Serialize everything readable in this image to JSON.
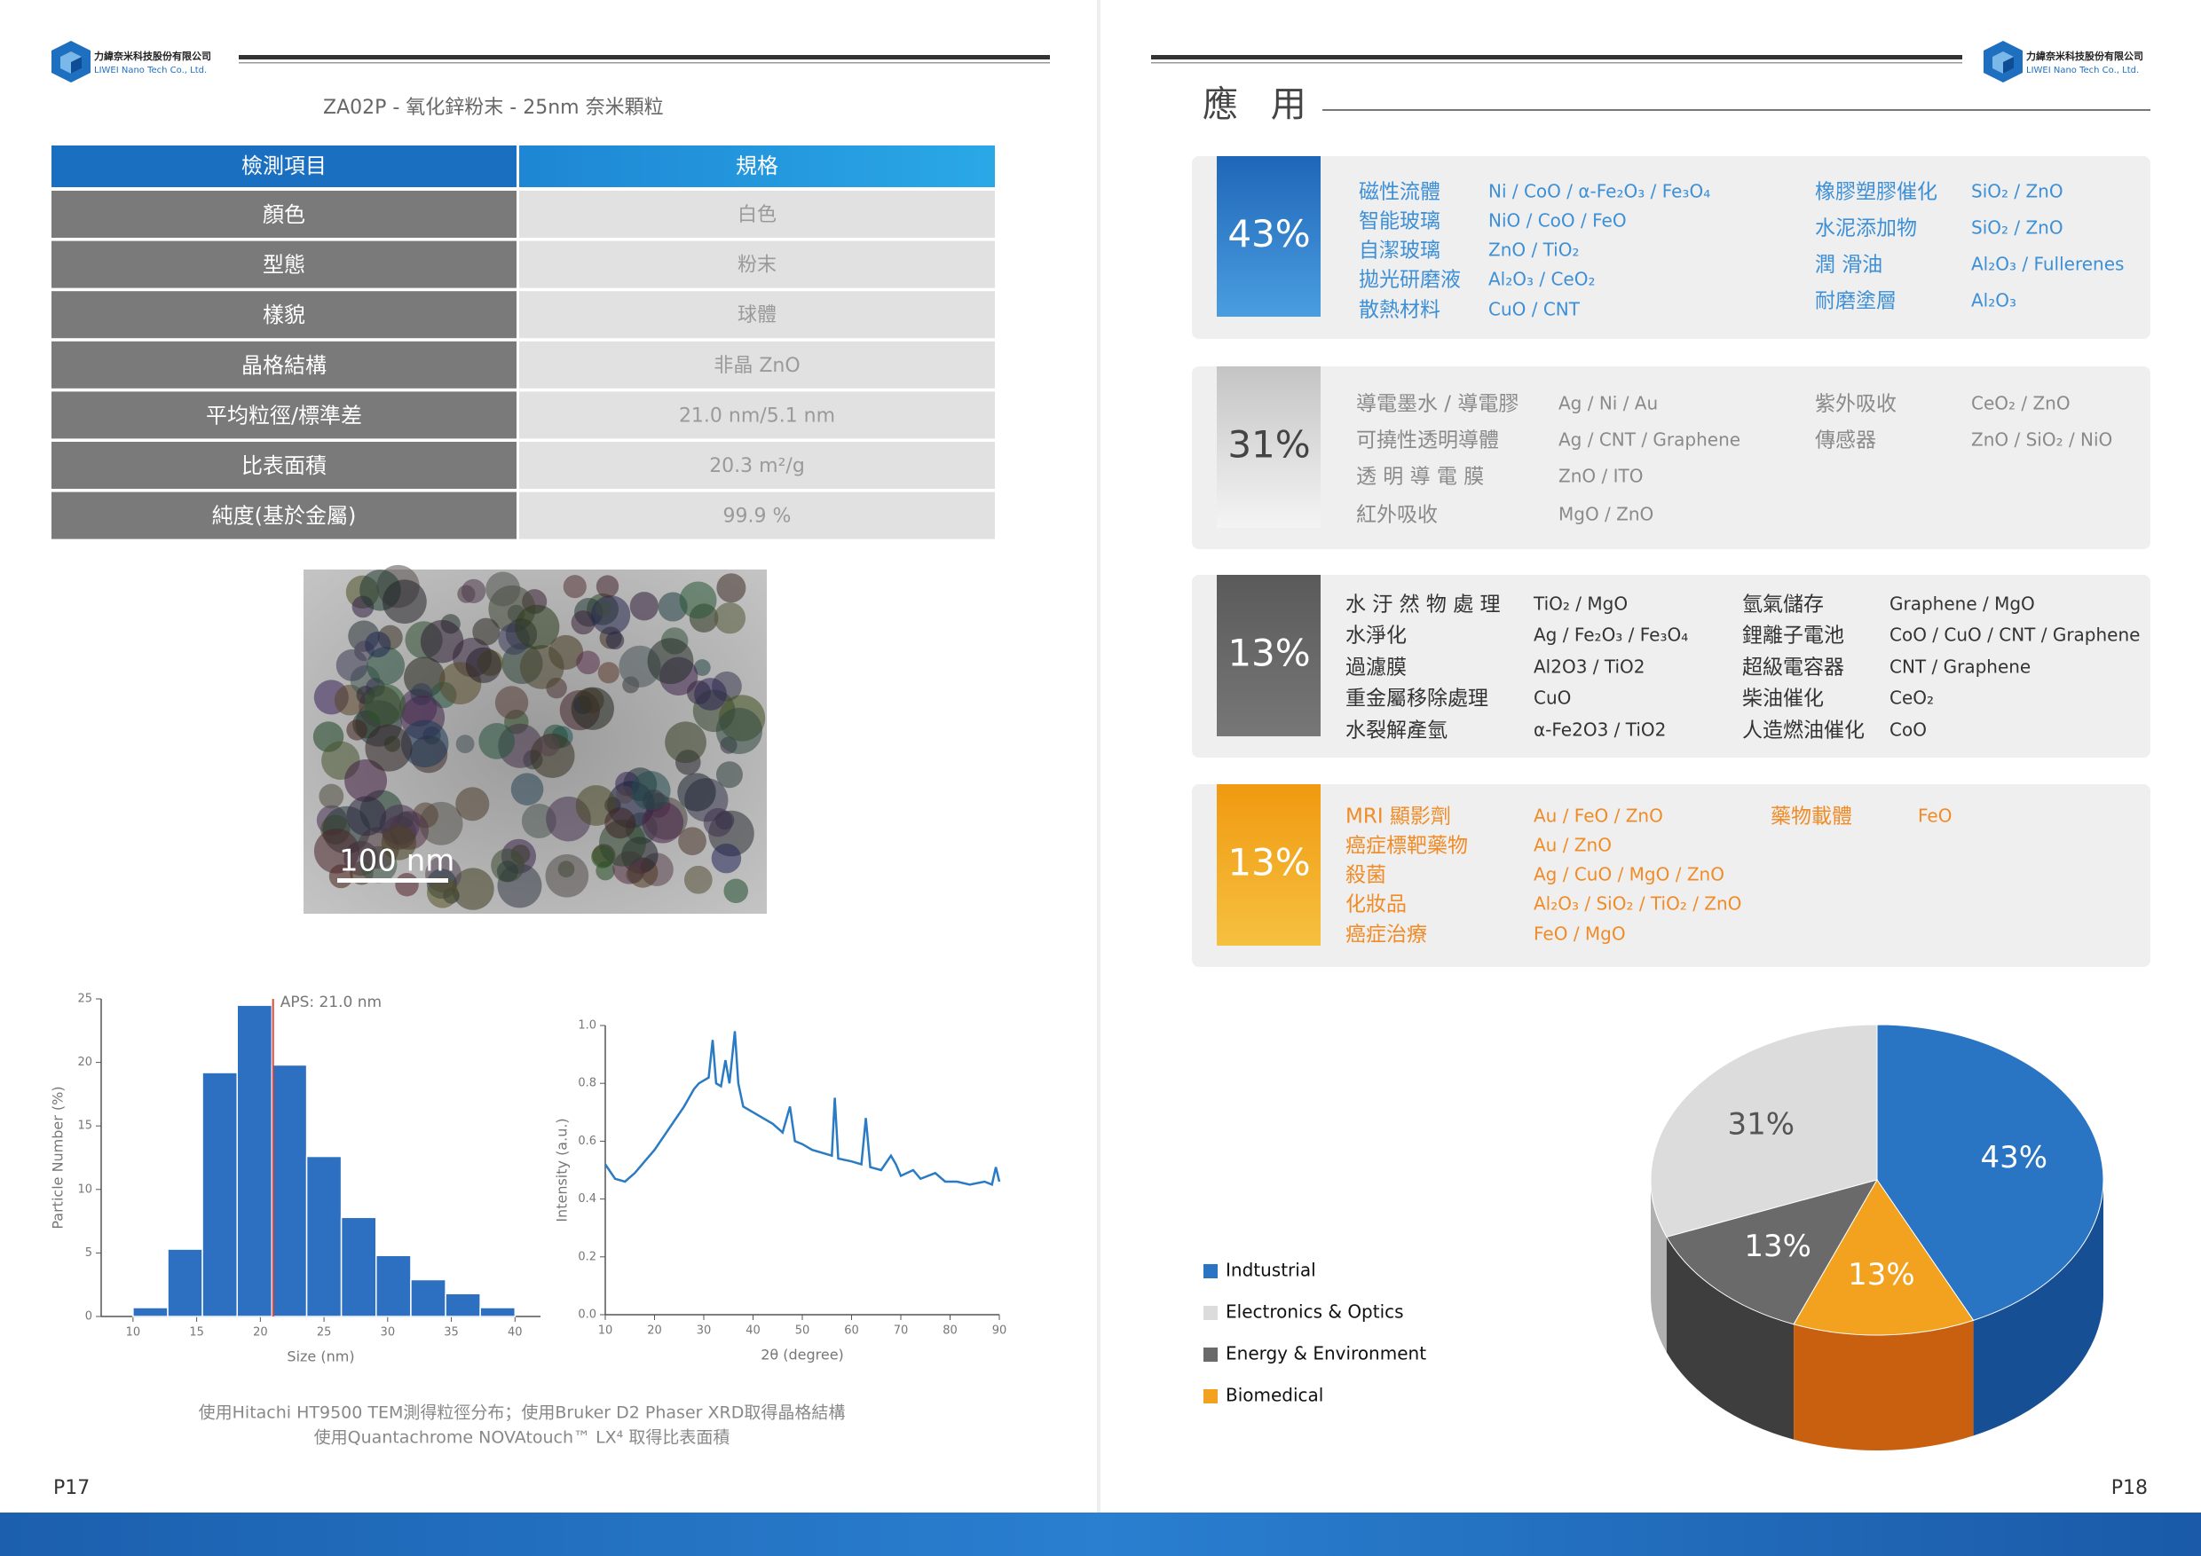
{
  "header": {
    "company_zh": "力緯奈米科技股份有限公司",
    "company_en": "LIWEI Nano Tech Co., Ltd."
  },
  "product_title": "ZA02P - 氧化鋅粉末  - 25nm  奈米顆粒",
  "table": {
    "header": [
      "檢測項目",
      "規格"
    ],
    "rows": [
      [
        "顏色",
        "白色"
      ],
      [
        "型態",
        "粉末"
      ],
      [
        "樣貌",
        "球體"
      ],
      [
        "晶格結構",
        "非晶  ZnO"
      ],
      [
        "平均粒徑/標準差",
        "21.0 nm/5.1 nm"
      ],
      [
        "比表面積",
        "20.3 m²/g"
      ],
      [
        "純度(基於金屬)",
        "99.9  %"
      ]
    ]
  },
  "tem_image": {
    "scale_label": "100 nm"
  },
  "chart_data": [
    {
      "type": "histogram",
      "xlabel": "Size (nm)",
      "ylabel": "Particle Number (%)",
      "bins": [
        10,
        12.73,
        15.45,
        18.18,
        20.91,
        23.64,
        26.36,
        29.09,
        31.82,
        34.55,
        37.27,
        40
      ],
      "values": [
        0.7,
        5.3,
        19.2,
        24.5,
        19.8,
        12.6,
        7.8,
        4.8,
        2.9,
        1.8,
        0.7
      ],
      "color": "#2d6fc1",
      "xlim": [
        7.5,
        42
      ],
      "ylim": [
        0,
        25
      ],
      "xticks": [
        10,
        15,
        20,
        25,
        30,
        35,
        40
      ],
      "yticks": [
        0,
        5,
        10,
        15,
        20,
        25
      ],
      "vline": {
        "value": 21,
        "label": "APS: 21.0 nm",
        "color": "#e0473a"
      }
    },
    {
      "type": "line",
      "xlabel": "2θ (degree)",
      "ylabel": "Intensity (a.u.)",
      "x": [
        10,
        12,
        14,
        16,
        18,
        20,
        22,
        24,
        26,
        28,
        29,
        30,
        31,
        31.8,
        32.5,
        33.5,
        34.4,
        35.2,
        36.3,
        37,
        38,
        40,
        42,
        44,
        46,
        47.5,
        48.5,
        50,
        52,
        54,
        56,
        56.6,
        57.3,
        60,
        62,
        62.9,
        63.8,
        66,
        68,
        69,
        70,
        72.5,
        74,
        77,
        79,
        81.4,
        84,
        87,
        88.5,
        89.3,
        90
      ],
      "series": [
        {
          "color": "#2a7bc4",
          "values": [
            0.52,
            0.47,
            0.46,
            0.49,
            0.53,
            0.57,
            0.62,
            0.67,
            0.72,
            0.78,
            0.8,
            0.81,
            0.82,
            0.95,
            0.8,
            0.79,
            0.88,
            0.8,
            0.98,
            0.8,
            0.72,
            0.7,
            0.68,
            0.66,
            0.63,
            0.72,
            0.6,
            0.59,
            0.57,
            0.56,
            0.55,
            0.75,
            0.54,
            0.53,
            0.52,
            0.68,
            0.51,
            0.5,
            0.55,
            0.52,
            0.48,
            0.5,
            0.47,
            0.49,
            0.46,
            0.46,
            0.45,
            0.46,
            0.45,
            0.51,
            0.46
          ]
        }
      ],
      "xlim": [
        10,
        90
      ],
      "ylim": [
        0,
        1
      ],
      "xticks": [
        10,
        20,
        30,
        40,
        50,
        60,
        70,
        80,
        90
      ],
      "yticks": [
        {
          "value": 0,
          "label": "0.0"
        },
        0.2,
        0.4,
        0.6,
        0.8,
        {
          "value": 1,
          "label": "1.0"
        }
      ]
    },
    {
      "type": "pie",
      "categories": [
        "Indtustrial",
        "Electronics & Optics",
        "Energy & Environment",
        "Biomedical"
      ],
      "values": [
        43,
        31,
        13,
        13
      ],
      "value_labels": [
        "43%",
        "31%",
        "13%",
        "13%"
      ],
      "colors": [
        "#2a74c4",
        "#dcdcdc",
        "#6a6a6a",
        "#f2a21e"
      ],
      "legend": "left"
    }
  ],
  "caption": [
    "使用Hitachi HT9500 TEM測得粒徑分布；使用Bruker D2 Phaser XRD取得晶格結構",
    "使用Quantachrome NOVAtouch™ LX⁴ 取得比表面積"
  ],
  "page_numbers": [
    "P17",
    "P18"
  ],
  "applications": {
    "title": "應 用",
    "sections": [
      {
        "percent": "43%",
        "left": [
          [
            "磁性流體",
            "Ni / CoO / α-Fe₂O₃ / Fe₃O₄"
          ],
          [
            "智能玻璃",
            "NiO / CoO / FeO"
          ],
          [
            "自潔玻璃",
            "ZnO / TiO₂"
          ],
          [
            "拋光研磨液",
            "Al₂O₃ / CeO₂"
          ],
          [
            "散熱材料",
            "CuO / CNT"
          ]
        ],
        "right": [
          [
            "橡膠塑膠催化",
            "SiO₂ / ZnO"
          ],
          [
            "水泥添加物",
            "SiO₂ / ZnO"
          ],
          [
            "潤 滑油",
            "Al₂O₃ / Fullerenes"
          ],
          [
            "耐磨塗層",
            "Al₂O₃"
          ]
        ]
      },
      {
        "percent": "31%",
        "left": [
          [
            "導電墨水 / 導電膠",
            "Ag / Ni / Au"
          ],
          [
            "可撓性透明導體",
            "Ag / CNT / Graphene"
          ],
          [
            "透 明 導 電 膜",
            "ZnO / ITO"
          ],
          [
            "紅外吸收",
            "MgO / ZnO"
          ]
        ],
        "right": [
          [
            "紫外吸收",
            "CeO₂ / ZnO"
          ],
          [
            "傳感器",
            "ZnO / SiO₂ / NiO"
          ]
        ]
      },
      {
        "percent": "13%",
        "left": [
          [
            "水 汙 然 物 處 理",
            "TiO₂ / MgO"
          ],
          [
            "水淨化",
            "Ag / Fe₂O₃ / Fe₃O₄"
          ],
          [
            "過濾膜",
            "Al2O3 / TiO2"
          ],
          [
            "重金屬移除處理",
            "CuO"
          ],
          [
            "水裂解產氫",
            "α-Fe2O3 / TiO2"
          ]
        ],
        "right": [
          [
            "氫氣儲存",
            "Graphene / MgO"
          ],
          [
            "鋰離子電池",
            "CoO / CuO / CNT / Graphene"
          ],
          [
            "超級電容器",
            "CNT / Graphene"
          ],
          [
            "柴油催化",
            "CeO₂"
          ],
          [
            "人造燃油催化",
            "CoO"
          ]
        ]
      },
      {
        "percent": "13%",
        "left": [
          [
            "MRI 顯影劑",
            "Au / FeO / ZnO"
          ],
          [
            "癌症標靶藥物",
            "Au / ZnO"
          ],
          [
            "殺菌",
            "Ag / CuO / MgO / ZnO"
          ],
          [
            "化妝品",
            "Al₂O₃ / SiO₂ / TiO₂ / ZnO"
          ],
          [
            "癌症治療",
            "FeO / MgO"
          ]
        ],
        "right": [
          [
            "藥物載體",
            "FeO"
          ]
        ]
      }
    ]
  }
}
